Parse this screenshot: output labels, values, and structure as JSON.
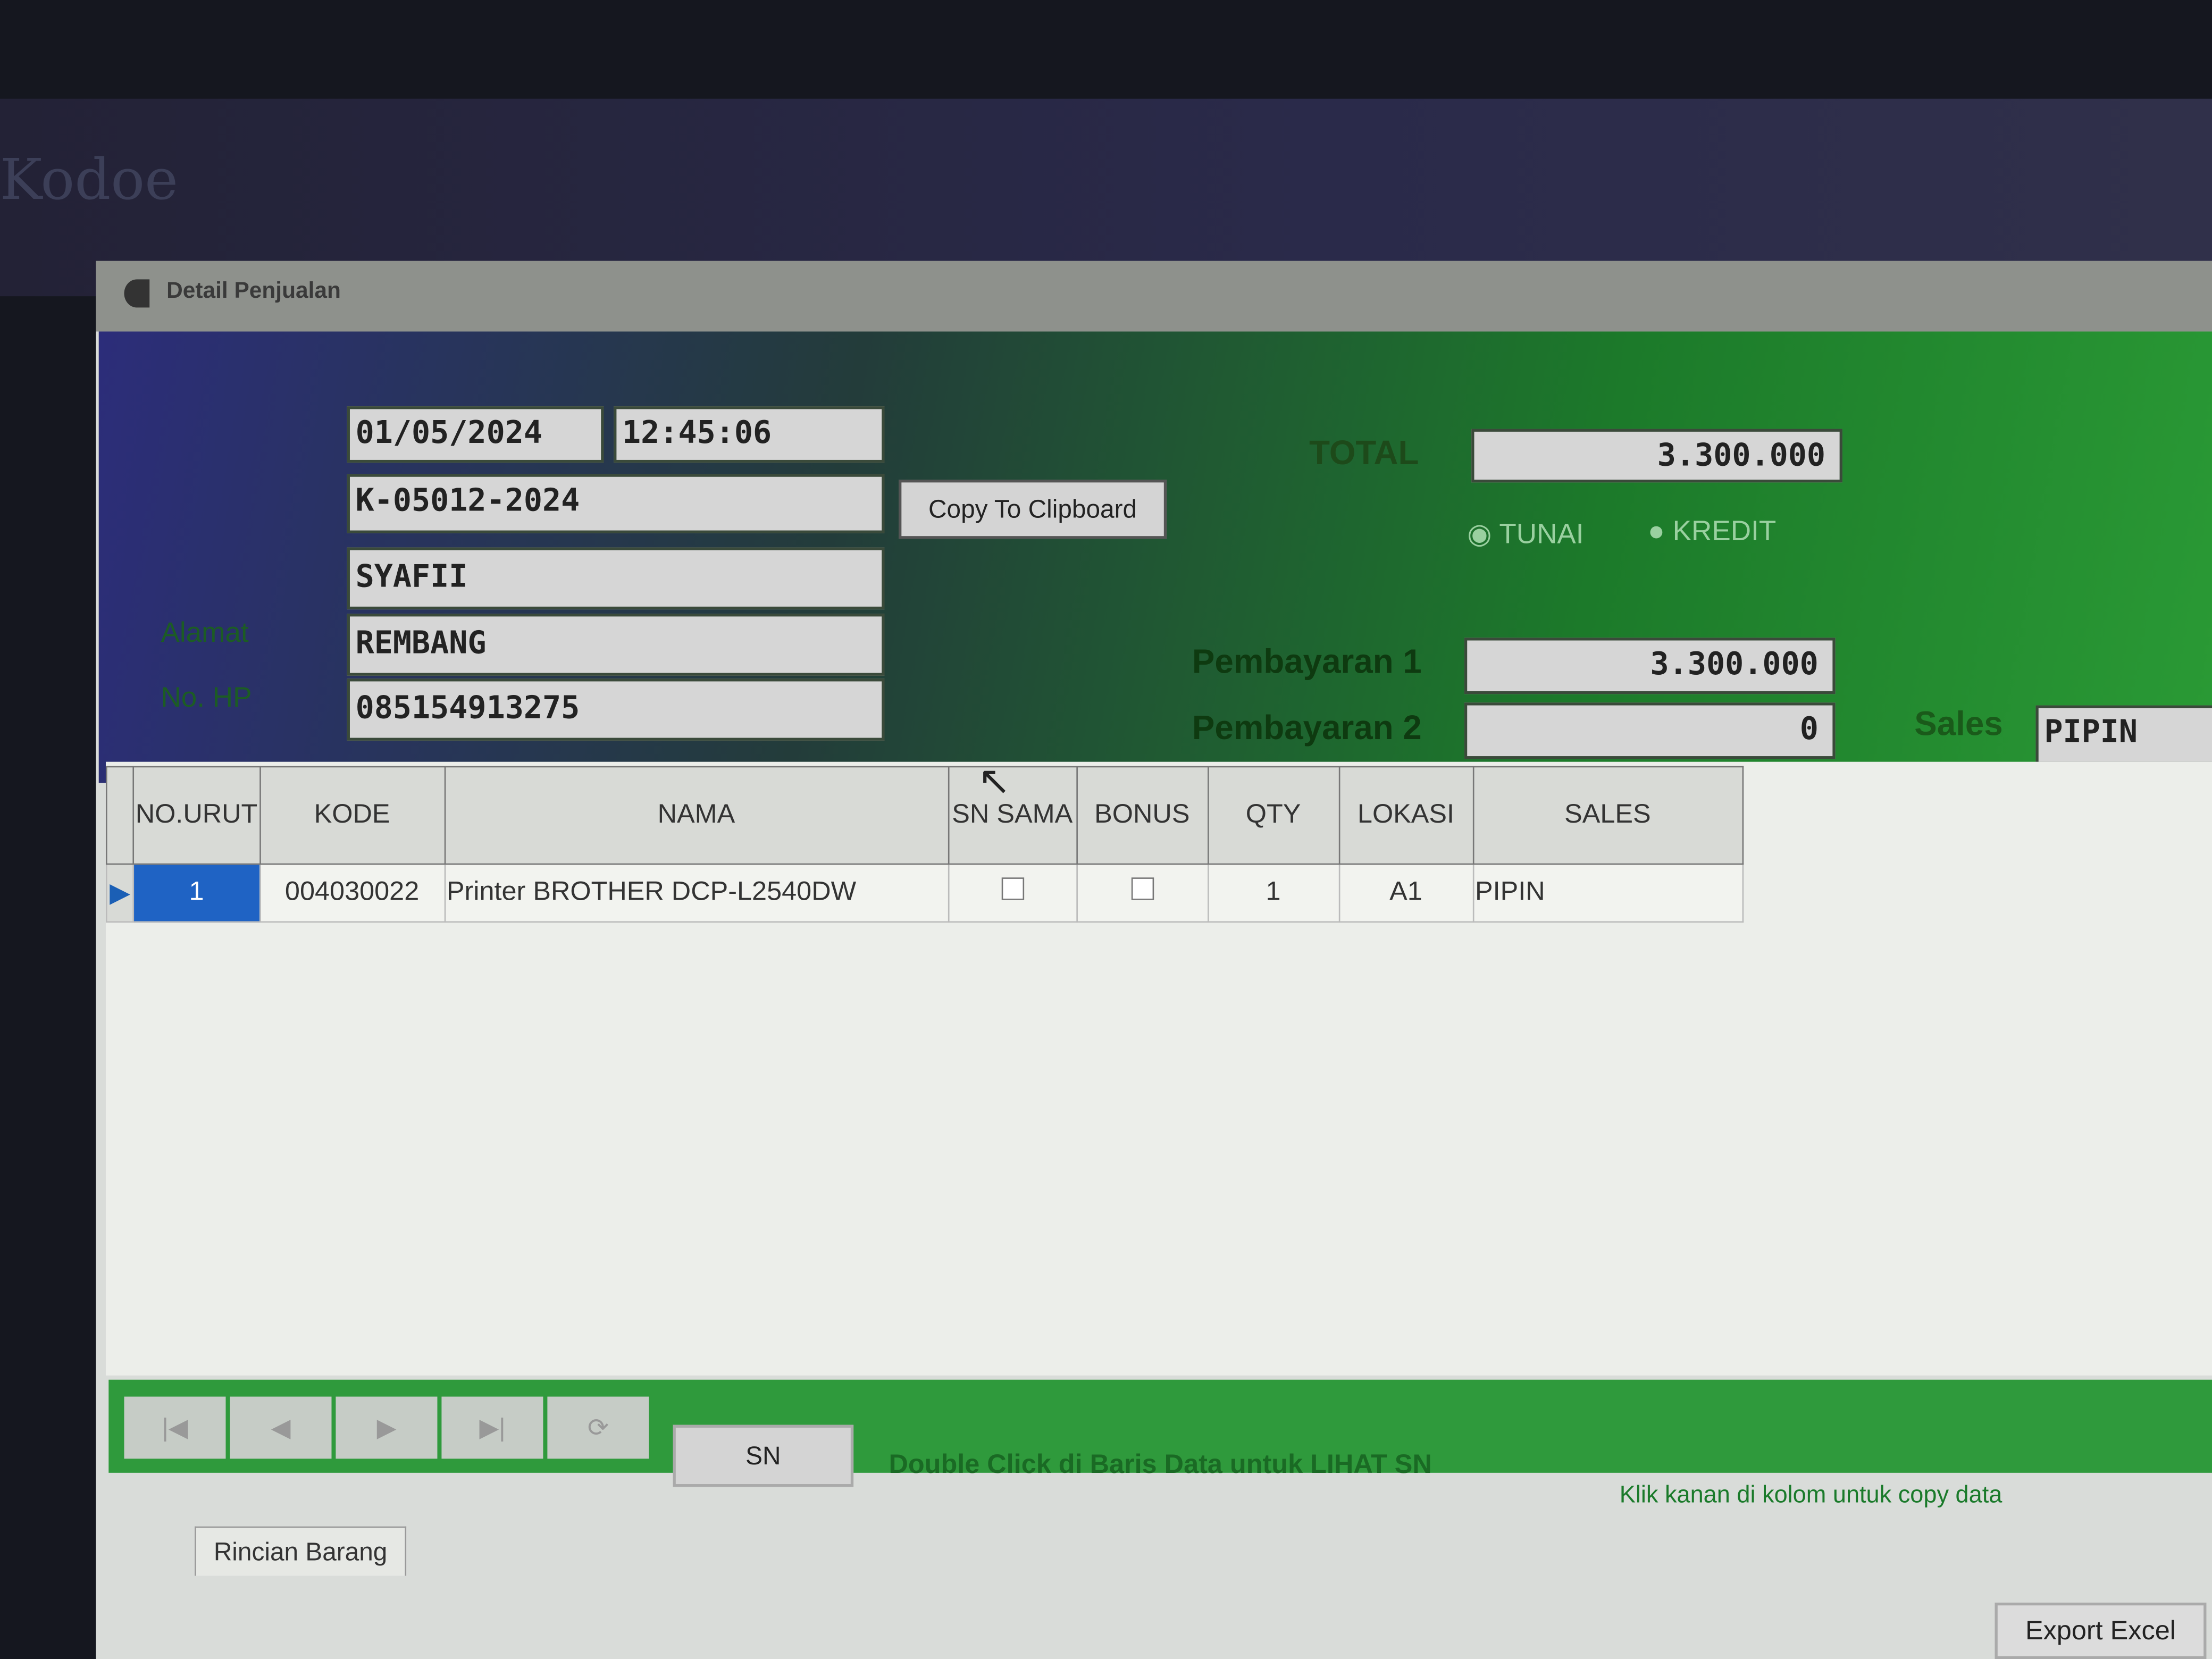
{
  "background_app": {
    "title": "Kodoe"
  },
  "window": {
    "title": "Detail Penjualan"
  },
  "form": {
    "date": "01/05/2024",
    "time": "12:45:06",
    "invoice_no": "K-05012-2024",
    "customer": "SYAFII",
    "address_label": "Alamat",
    "address": "REMBANG",
    "phone_label": "No. HP",
    "phone": "085154913275",
    "copy_button": "Copy To Clipboard",
    "total_label": "TOTAL",
    "total": "3.300.000",
    "payment_type": {
      "options": [
        "TUNAI",
        "KREDIT"
      ],
      "selected": "TUNAI"
    },
    "payment1_label": "Pembayaran 1",
    "payment1": "3.300.000",
    "payment2_label": "Pembayaran 2",
    "payment2": "0",
    "sales_label": "Sales",
    "sales": "PIPIN"
  },
  "table": {
    "columns": [
      "NO.URUT",
      "KODE",
      "NAMA",
      "SN SAMA",
      "BONUS",
      "QTY",
      "LOKASI",
      "SALES"
    ],
    "rows": [
      {
        "no": "1",
        "kode": "004030022",
        "nama": "Printer BROTHER DCP-L2540DW",
        "sn_sama": false,
        "bonus": false,
        "qty": "1",
        "lokasi": "A1",
        "sales": "PIPIN"
      }
    ]
  },
  "footer": {
    "nav": [
      "|◀",
      "◀",
      "▶",
      "▶|",
      "⟳"
    ],
    "sn_button": "SN",
    "hint1": "Double Click di Baris Data untuk LIHAT SN",
    "hint2": "Klik kanan di kolom untuk copy data"
  },
  "tabs": [
    "Rincian Barang"
  ],
  "export_button": "Export Excel"
}
